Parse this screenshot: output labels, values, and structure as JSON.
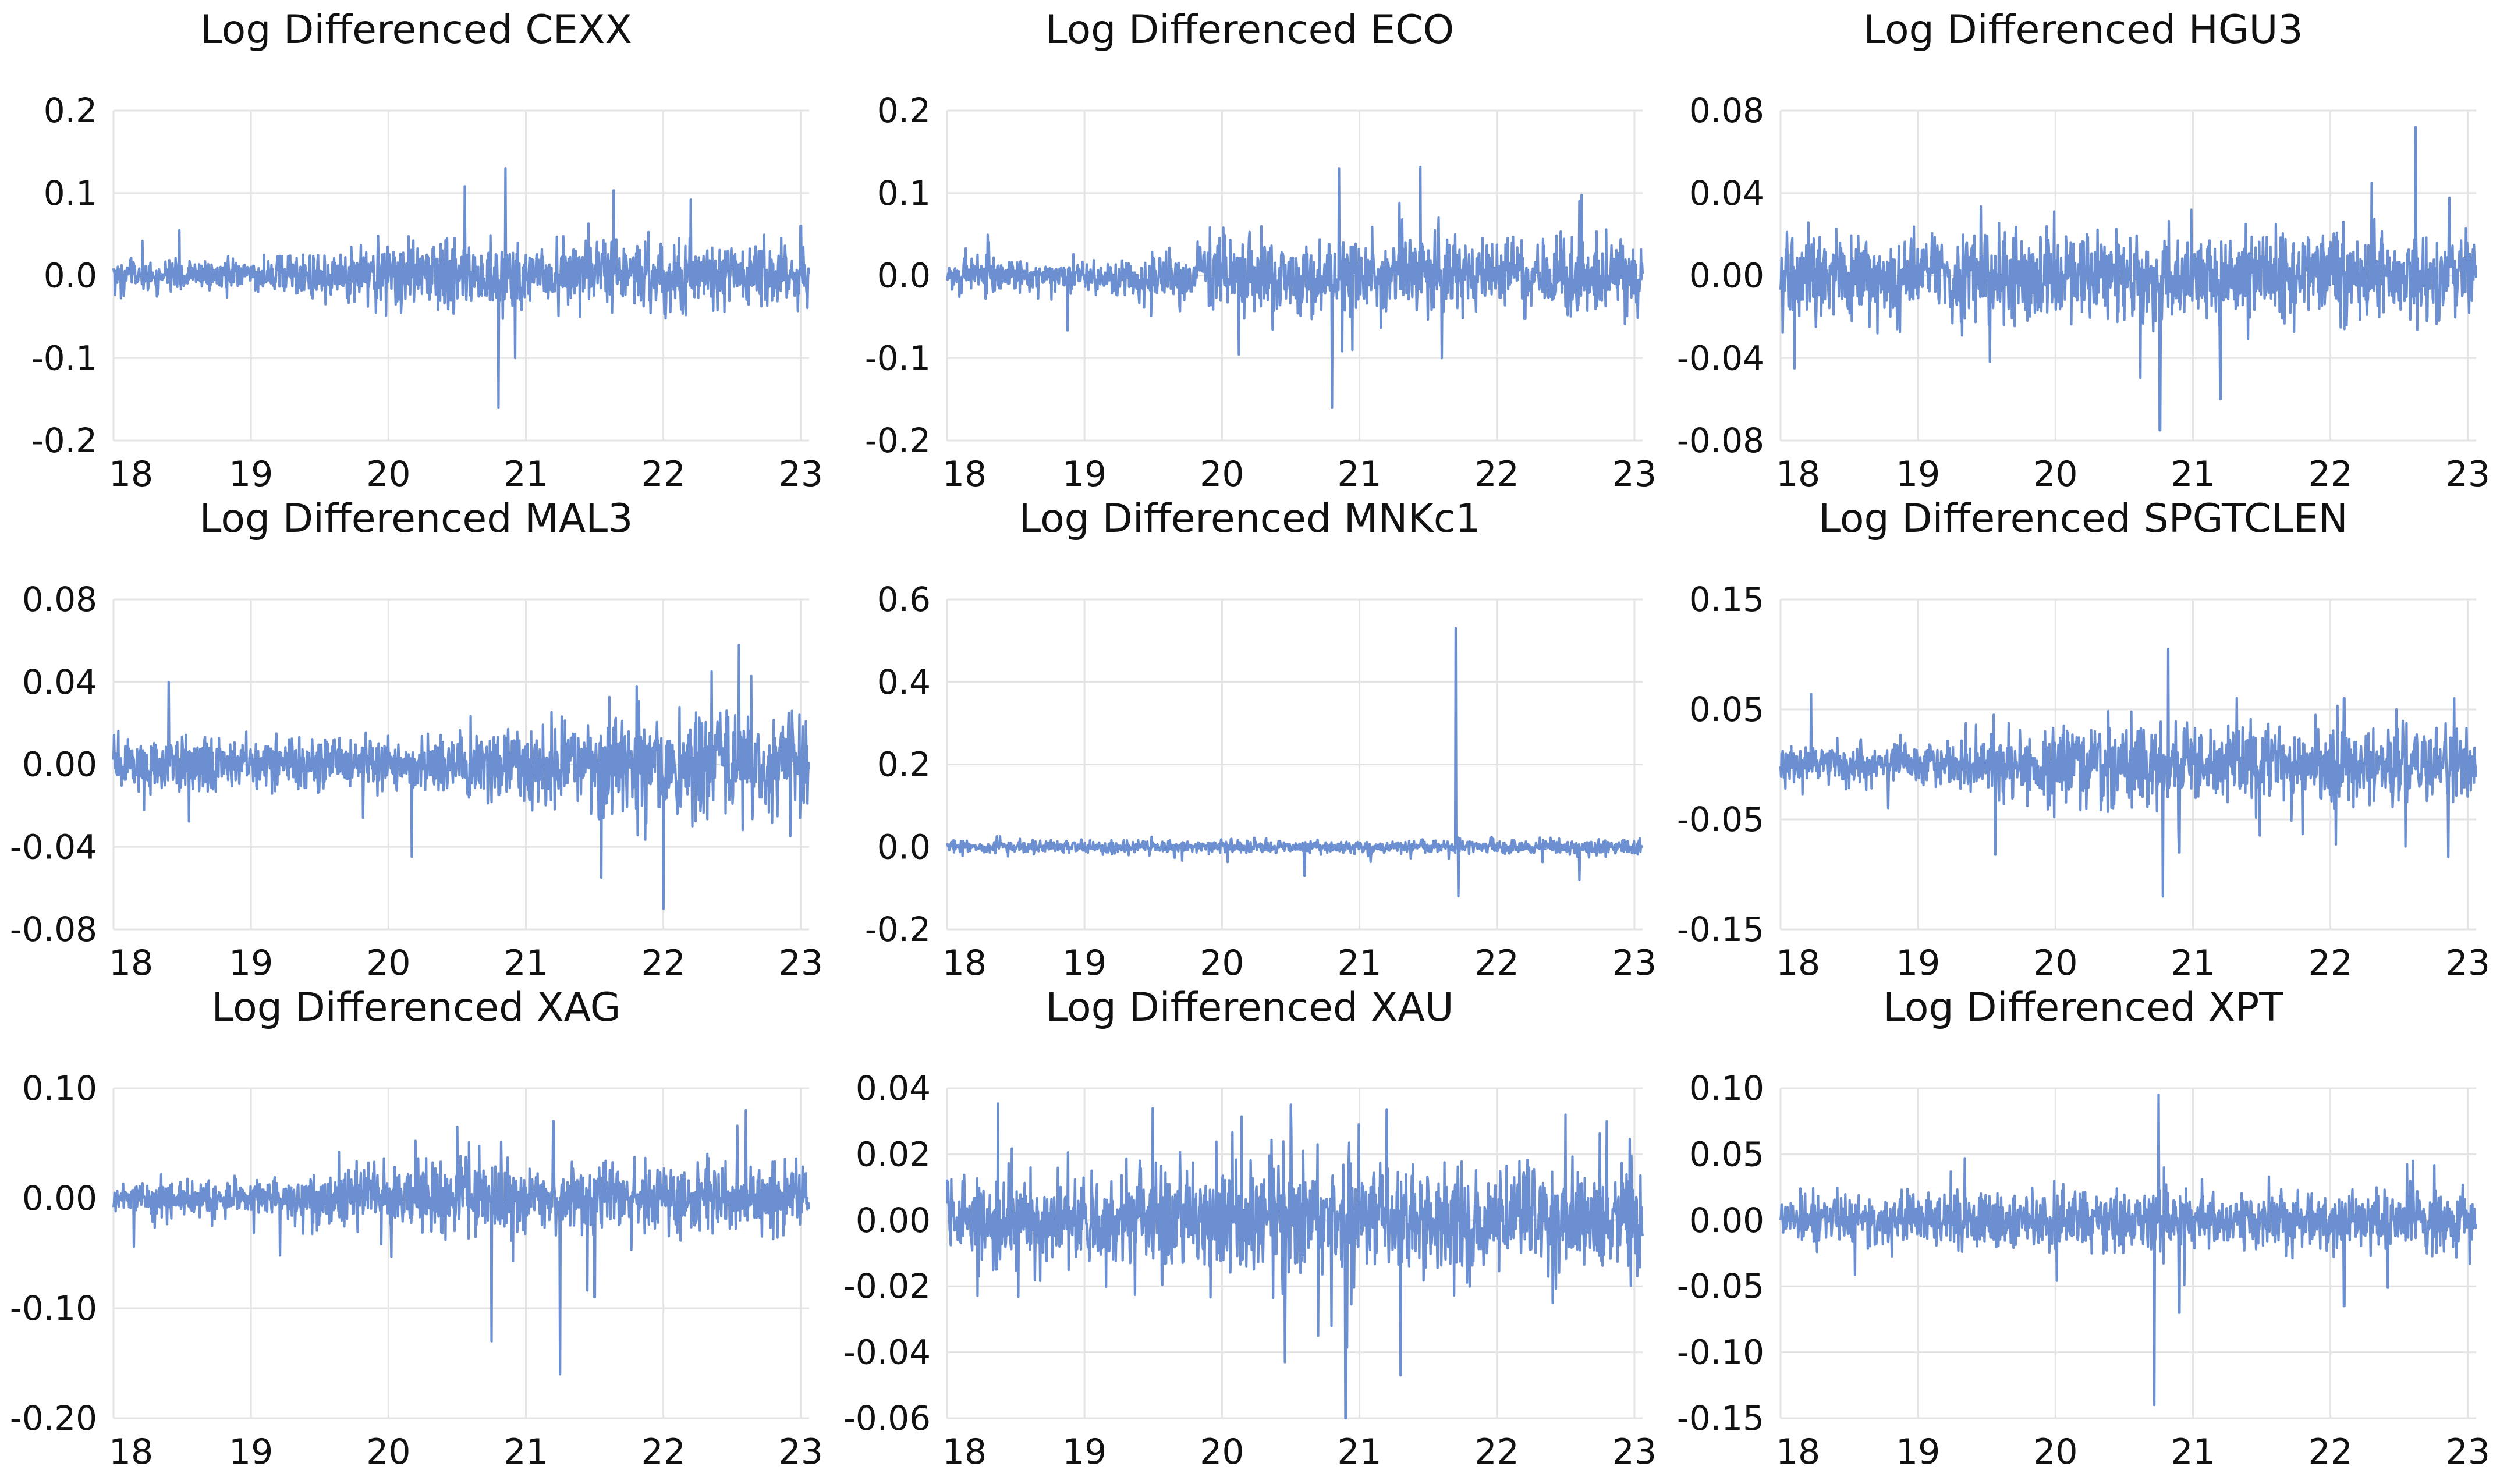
{
  "figure": {
    "series_color": "#6b8fd0",
    "grid_color": "#e4e4e4"
  },
  "chart_data": [
    {
      "type": "line",
      "id": "cexx",
      "title": "Log Differenced CEXX",
      "xlabel": "",
      "ylabel": "",
      "x_ticks": [
        "18",
        "19",
        "20",
        "21",
        "22",
        "23"
      ],
      "y_ticks": [
        "0.2",
        "0.1",
        "0.0",
        "-0.1",
        "-0.2"
      ],
      "ylim": [
        -0.2,
        0.2
      ],
      "volatility": [
        0.012,
        0.013,
        0.026,
        0.026,
        0.025,
        0.024
      ],
      "spikes": [
        {
          "t": 2.8,
          "v": -0.16
        },
        {
          "t": 2.85,
          "v": 0.13
        },
        {
          "t": 2.92,
          "v": -0.1
        },
        {
          "t": 0.48,
          "v": 0.055
        },
        {
          "t": 4.2,
          "v": 0.092
        },
        {
          "t": 5.0,
          "v": 0.06
        }
      ]
    },
    {
      "type": "line",
      "id": "eco",
      "title": "Log Differenced ECO",
      "xlabel": "",
      "ylabel": "",
      "x_ticks": [
        "18",
        "19",
        "20",
        "21",
        "22",
        "23"
      ],
      "y_ticks": [
        "0.2",
        "0.1",
        "0.0",
        "-0.1",
        "-0.2"
      ],
      "ylim": [
        -0.2,
        0.2
      ],
      "volatility": [
        0.012,
        0.012,
        0.028,
        0.03,
        0.028,
        0.026
      ],
      "spikes": [
        {
          "t": 2.8,
          "v": -0.16
        },
        {
          "t": 2.85,
          "v": 0.13
        },
        {
          "t": 2.95,
          "v": -0.09
        },
        {
          "t": 3.6,
          "v": -0.1
        },
        {
          "t": 4.6,
          "v": 0.09
        }
      ]
    },
    {
      "type": "line",
      "id": "hgu3",
      "title": "Log Differenced HGU3",
      "xlabel": "",
      "ylabel": "",
      "x_ticks": [
        "18",
        "19",
        "20",
        "21",
        "22",
        "23"
      ],
      "y_ticks": [
        "0.08",
        "0.04",
        "0.00",
        "-0.04",
        "-0.08"
      ],
      "ylim": [
        -0.08,
        0.08
      ],
      "volatility": [
        0.013,
        0.012,
        0.014,
        0.014,
        0.014,
        0.014
      ],
      "spikes": [
        {
          "t": 2.76,
          "v": -0.075
        },
        {
          "t": 4.62,
          "v": 0.072
        },
        {
          "t": 4.3,
          "v": 0.045
        },
        {
          "t": 3.2,
          "v": -0.06
        },
        {
          "t": 0.1,
          "v": -0.045
        }
      ]
    },
    {
      "type": "line",
      "id": "mal3",
      "title": "Log Differenced MAL3",
      "xlabel": "",
      "ylabel": "",
      "x_ticks": [
        "18",
        "19",
        "20",
        "21",
        "22",
        "23"
      ],
      "y_ticks": [
        "0.08",
        "0.04",
        "0.00",
        "-0.04",
        "-0.08"
      ],
      "ylim": [
        -0.08,
        0.08
      ],
      "volatility": [
        0.01,
        0.008,
        0.008,
        0.012,
        0.018,
        0.016
      ],
      "spikes": [
        {
          "t": 0.4,
          "v": 0.04
        },
        {
          "t": 3.55,
          "v": -0.055
        },
        {
          "t": 4.0,
          "v": -0.07
        },
        {
          "t": 4.55,
          "v": 0.058
        },
        {
          "t": 4.35,
          "v": 0.045
        }
      ]
    },
    {
      "type": "line",
      "id": "mnkc1",
      "title": "Log Differenced MNKc1",
      "xlabel": "",
      "ylabel": "",
      "x_ticks": [
        "18",
        "19",
        "20",
        "21",
        "22",
        "23"
      ],
      "y_ticks": [
        "0.6",
        "0.4",
        "0.2",
        "0.0",
        "-0.2"
      ],
      "ylim": [
        -0.2,
        0.6
      ],
      "volatility": [
        0.01,
        0.01,
        0.01,
        0.01,
        0.012,
        0.012
      ],
      "spikes": [
        {
          "t": 3.7,
          "v": 0.53
        },
        {
          "t": 3.72,
          "v": -0.12
        },
        {
          "t": 4.6,
          "v": -0.08
        },
        {
          "t": 2.6,
          "v": -0.07
        }
      ]
    },
    {
      "type": "line",
      "id": "spgtclen",
      "title": "Log Differenced SPGTCLEN",
      "xlabel": "",
      "ylabel": "",
      "x_ticks": [
        "18",
        "19",
        "20",
        "21",
        "22",
        "23"
      ],
      "y_ticks": [
        "0.15",
        "0.05",
        "-0.05",
        "-0.15"
      ],
      "ylim": [
        -0.15,
        0.15
      ],
      "volatility": [
        0.012,
        0.01,
        0.024,
        0.022,
        0.024,
        0.018
      ],
      "spikes": [
        {
          "t": 2.78,
          "v": -0.12
        },
        {
          "t": 2.82,
          "v": 0.105
        },
        {
          "t": 2.9,
          "v": -0.08
        },
        {
          "t": 4.1,
          "v": 0.06
        },
        {
          "t": 4.9,
          "v": 0.06
        }
      ]
    },
    {
      "type": "line",
      "id": "xag",
      "title": "Log Differenced XAG",
      "xlabel": "",
      "ylabel": "",
      "x_ticks": [
        "18",
        "19",
        "20",
        "21",
        "22",
        "23"
      ],
      "y_ticks": [
        "0.10",
        "0.00",
        "-0.10",
        "-0.20"
      ],
      "ylim": [
        -0.2,
        0.1
      ],
      "volatility": [
        0.01,
        0.01,
        0.022,
        0.02,
        0.02,
        0.018
      ],
      "spikes": [
        {
          "t": 2.75,
          "v": -0.13
        },
        {
          "t": 3.25,
          "v": -0.16
        },
        {
          "t": 3.2,
          "v": 0.07
        },
        {
          "t": 2.5,
          "v": 0.065
        },
        {
          "t": 4.6,
          "v": 0.08
        },
        {
          "t": 3.5,
          "v": -0.09
        }
      ]
    },
    {
      "type": "line",
      "id": "xau",
      "title": "Log Differenced XAU",
      "xlabel": "",
      "ylabel": "",
      "x_ticks": [
        "18",
        "19",
        "20",
        "21",
        "22",
        "23"
      ],
      "y_ticks": [
        "0.04",
        "0.02",
        "0.00",
        "-0.02",
        "-0.04",
        "-0.06"
      ],
      "ylim": [
        -0.06,
        0.04
      ],
      "volatility": [
        0.008,
        0.008,
        0.012,
        0.011,
        0.01,
        0.011
      ],
      "spikes": [
        {
          "t": 2.9,
          "v": -0.06
        },
        {
          "t": 3.3,
          "v": -0.047
        },
        {
          "t": 2.5,
          "v": 0.035
        },
        {
          "t": 4.5,
          "v": 0.032
        },
        {
          "t": 4.8,
          "v": 0.03
        },
        {
          "t": 2.7,
          "v": -0.035
        }
      ]
    },
    {
      "type": "line",
      "id": "xpt",
      "title": "Log Differenced XPT",
      "xlabel": "",
      "ylabel": "",
      "x_ticks": [
        "18",
        "19",
        "20",
        "21",
        "22",
        "23"
      ],
      "y_ticks": [
        "0.10",
        "0.05",
        "0.00",
        "-0.05",
        "-0.10",
        "-0.15"
      ],
      "ylim": [
        -0.15,
        0.1
      ],
      "volatility": [
        0.014,
        0.013,
        0.016,
        0.014,
        0.014,
        0.014
      ],
      "spikes": [
        {
          "t": 2.72,
          "v": -0.14
        },
        {
          "t": 2.75,
          "v": 0.095
        },
        {
          "t": 2.9,
          "v": -0.07
        },
        {
          "t": 4.1,
          "v": -0.065
        },
        {
          "t": 4.6,
          "v": 0.045
        }
      ]
    }
  ]
}
